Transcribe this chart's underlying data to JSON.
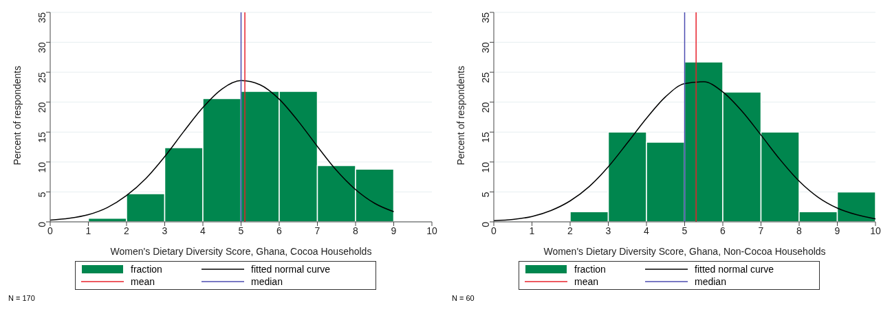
{
  "chart_data": [
    {
      "type": "histogram",
      "xlabel": "Women's Dietary Diversity Score, Ghana, Cocoa Households",
      "ylabel": "Percent of respondents",
      "bins": [
        1,
        2,
        3,
        4,
        5,
        6,
        7,
        8,
        9
      ],
      "xlim": [
        0,
        10
      ],
      "xticks": [
        0,
        1,
        2,
        3,
        4,
        5,
        6,
        7,
        8,
        9,
        10
      ],
      "ylim": [
        0,
        35
      ],
      "yticks": [
        0,
        5,
        10,
        15,
        20,
        25,
        30,
        35
      ],
      "grid": "y",
      "legend": "bottom",
      "marker": "none",
      "line_style": "solid",
      "series": [
        {
          "name": "fraction",
          "color": "#00864e",
          "values": [
            0.6,
            4.7,
            12.4,
            20.6,
            21.8,
            21.8,
            9.4,
            8.8
          ]
        },
        {
          "name": "fitted normal curve",
          "type": "line",
          "color": "#000000",
          "x": [
            0,
            0.5,
            1,
            1.5,
            2,
            2.5,
            3,
            3.5,
            4,
            4.5,
            5,
            5.5,
            6,
            6.5,
            7,
            7.5,
            8,
            8.5,
            9
          ],
          "values": [
            0.3,
            0.6,
            1.2,
            2.4,
            4.4,
            7.2,
            10.9,
            15.1,
            19.1,
            22.2,
            23.6,
            22.9,
            20.5,
            16.8,
            12.6,
            8.6,
            5.4,
            3.1,
            1.7
          ]
        }
      ],
      "ref_lines": [
        {
          "axis": "x",
          "value": 5.1,
          "label": "mean",
          "color": "#e8202a"
        },
        {
          "axis": "x",
          "value": 5,
          "label": "median",
          "color": "#4b4bb0"
        }
      ],
      "annotations": [
        "N = 170"
      ]
    },
    {
      "type": "histogram",
      "xlabel": "Women's Dietary Diversity Score, Ghana, Non-Cocoa Households",
      "ylabel": "Percent of respondents",
      "bins": [
        2,
        3,
        4,
        5,
        6,
        7,
        8,
        9,
        10
      ],
      "xlim": [
        0,
        10
      ],
      "xticks": [
        0,
        1,
        2,
        3,
        4,
        5,
        6,
        7,
        8,
        9,
        10
      ],
      "ylim": [
        0,
        35
      ],
      "yticks": [
        0,
        5,
        10,
        15,
        20,
        25,
        30,
        35
      ],
      "grid": "y",
      "legend": "bottom",
      "marker": "none",
      "line_style": "solid",
      "series": [
        {
          "name": "fraction",
          "color": "#00864e",
          "values": [
            1.7,
            15.0,
            13.3,
            26.7,
            21.7,
            15.0,
            1.7,
            5.0
          ]
        },
        {
          "name": "fitted normal curve",
          "type": "line",
          "color": "#000000",
          "x": [
            0,
            0.5,
            1,
            1.5,
            2,
            2.5,
            3,
            3.5,
            4,
            4.5,
            5,
            5.5,
            6,
            6.5,
            7,
            7.5,
            8,
            8.5,
            9,
            9.5,
            10
          ],
          "values": [
            0.2,
            0.4,
            0.9,
            1.9,
            3.5,
            5.9,
            9.2,
            13.2,
            17.3,
            20.9,
            23.1,
            23.4,
            21.7,
            18.5,
            14.5,
            10.4,
            6.8,
            4.1,
            2.3,
            1.2,
            0.5
          ]
        }
      ],
      "ref_lines": [
        {
          "axis": "x",
          "value": 5.3,
          "label": "mean",
          "color": "#e8202a"
        },
        {
          "axis": "x",
          "value": 5,
          "label": "median",
          "color": "#4b4bb0"
        }
      ],
      "annotations": [
        "N = 60"
      ]
    }
  ]
}
